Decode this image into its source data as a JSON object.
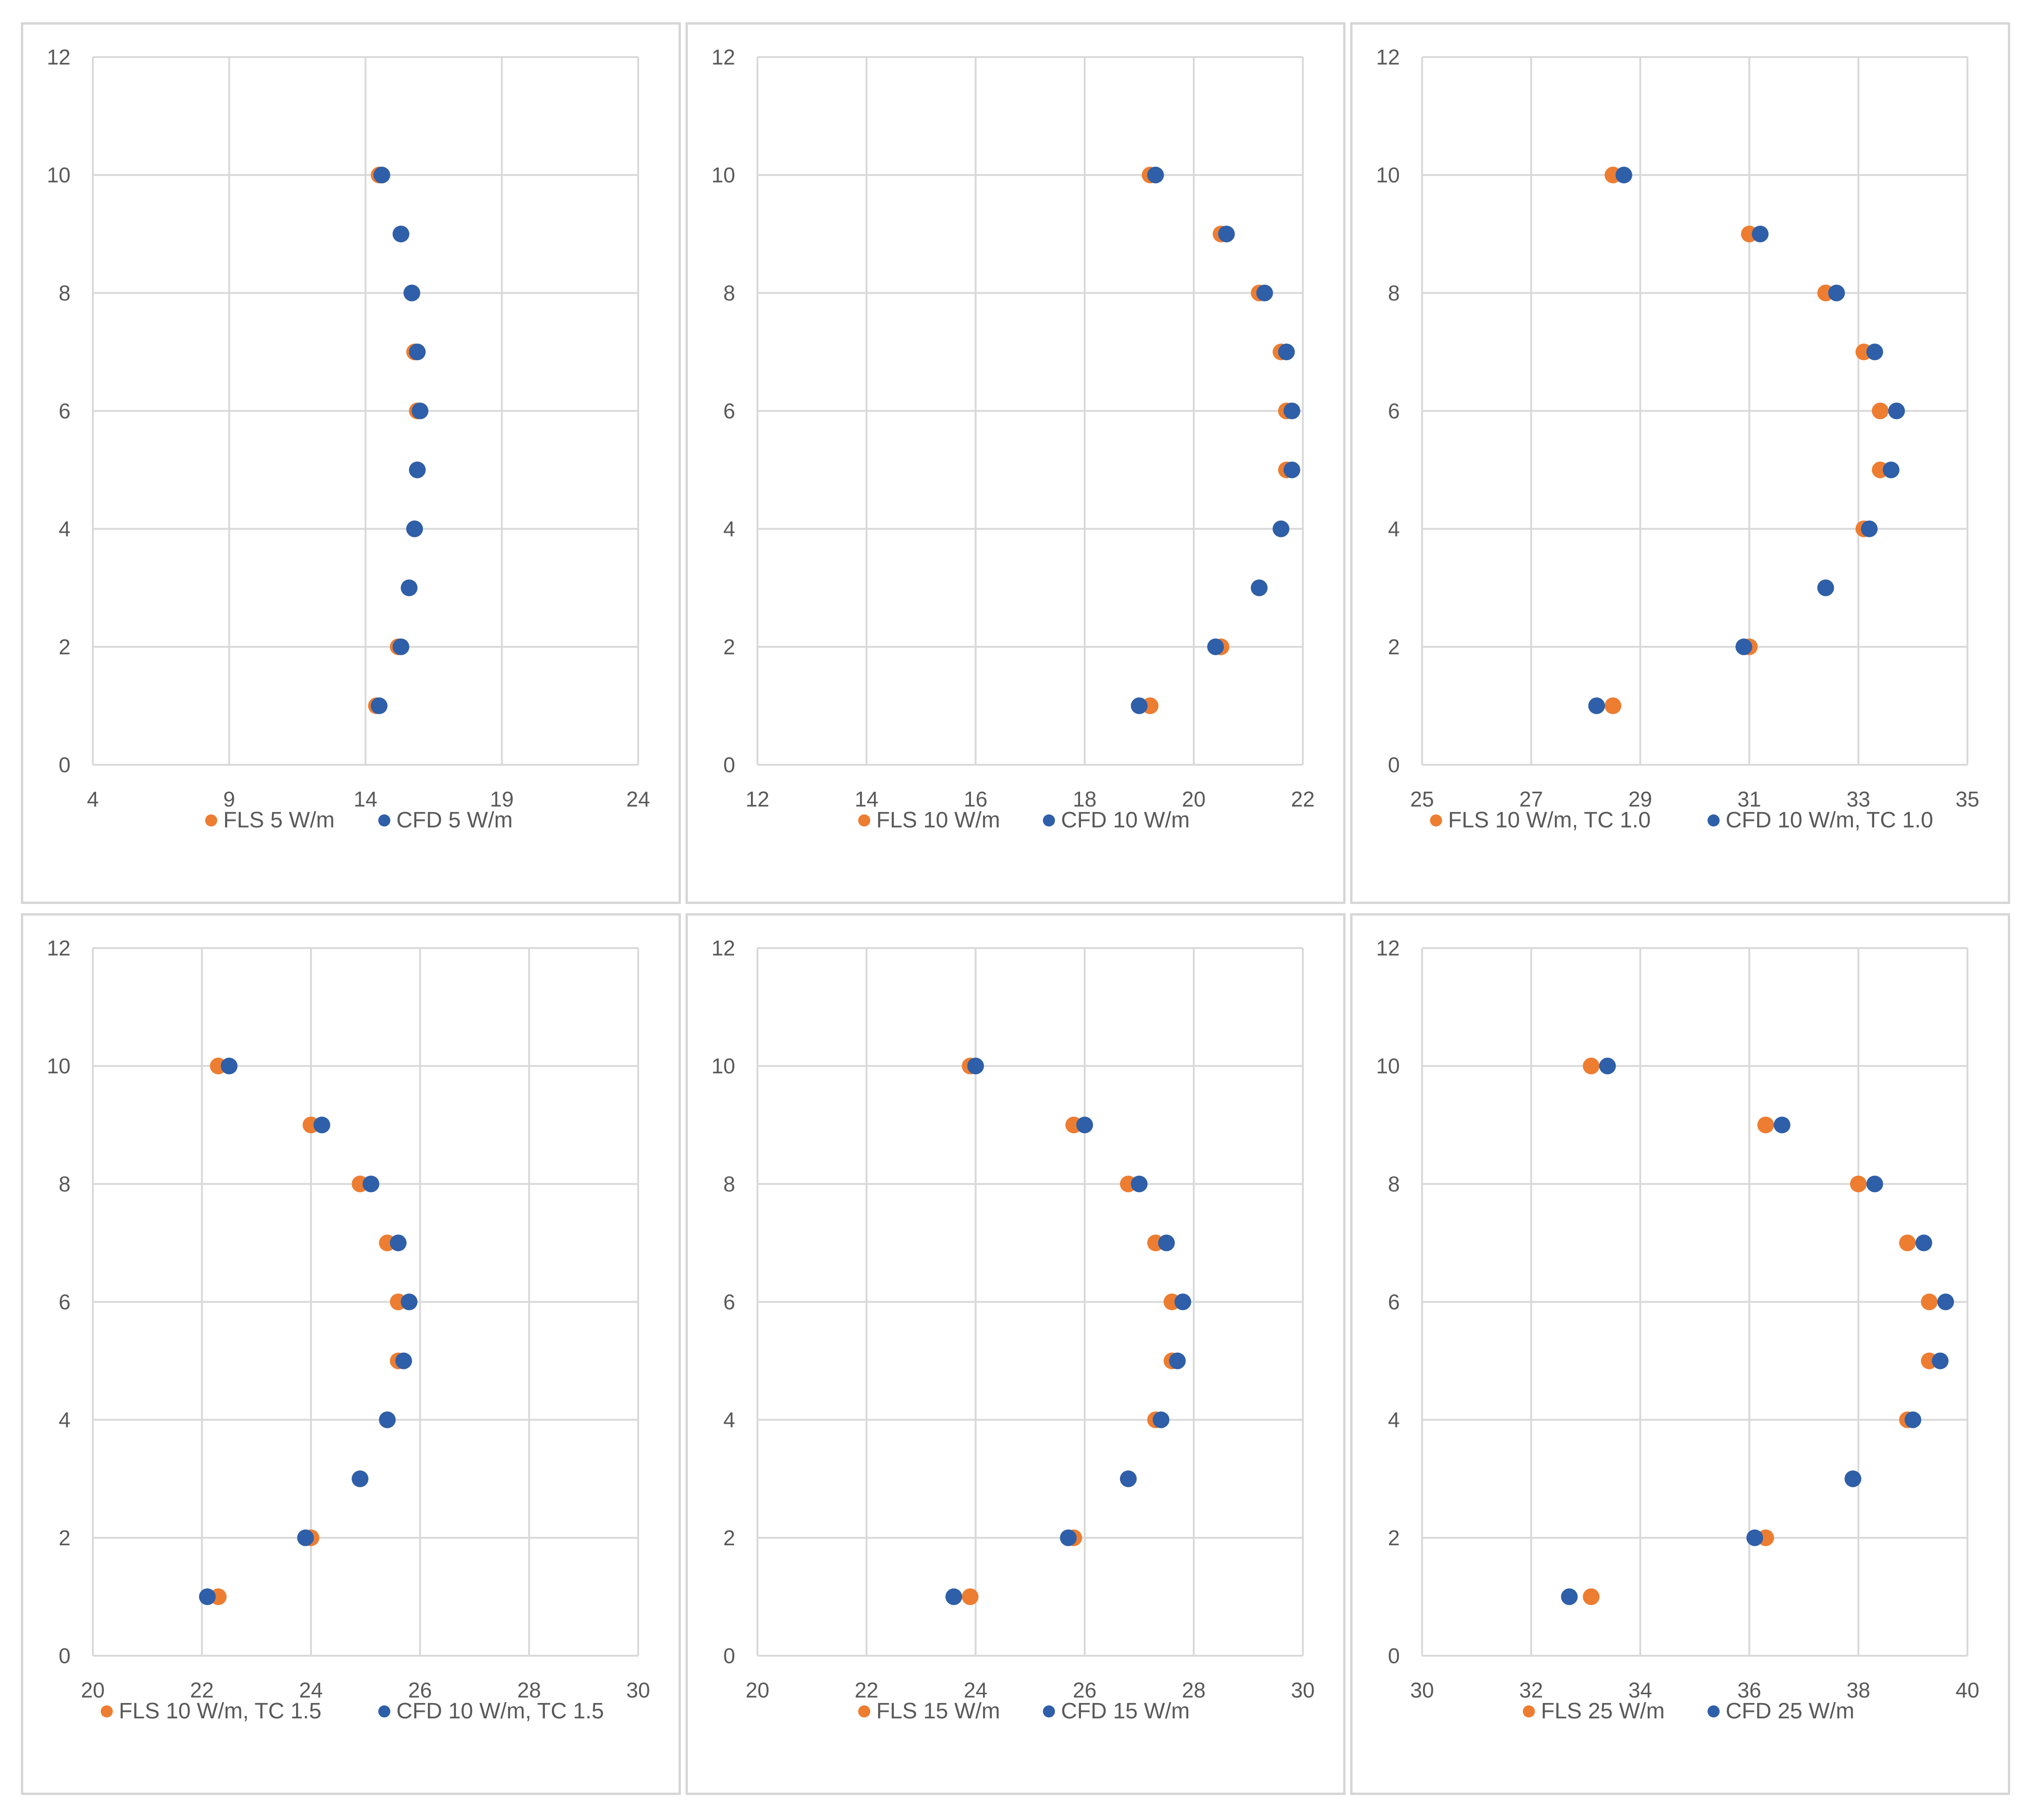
{
  "colors": {
    "fls": "#ED7D31",
    "cfd": "#2E5FA8",
    "grid": "#d9d9d9",
    "text": "#595959"
  },
  "chart_data": [
    {
      "type": "scatter",
      "xlim": [
        4,
        24
      ],
      "xticks": [
        4,
        9,
        14,
        19,
        24
      ],
      "ylim": [
        0,
        12
      ],
      "yticks": [
        0,
        2,
        4,
        6,
        8,
        10,
        12
      ],
      "legend_position": "bottom",
      "series": [
        {
          "name": "FLS 5 W/m",
          "color": "#ED7D31",
          "points": [
            [
              14.4,
              1
            ],
            [
              15.2,
              2
            ],
            [
              15.6,
              3
            ],
            [
              15.8,
              4
            ],
            [
              15.9,
              5
            ],
            [
              15.9,
              6
            ],
            [
              15.8,
              7
            ],
            [
              15.7,
              8
            ],
            [
              15.3,
              9
            ],
            [
              14.5,
              10
            ]
          ]
        },
        {
          "name": "CFD 5 W/m",
          "color": "#2E5FA8",
          "points": [
            [
              14.5,
              1
            ],
            [
              15.3,
              2
            ],
            [
              15.6,
              3
            ],
            [
              15.8,
              4
            ],
            [
              15.9,
              5
            ],
            [
              16.0,
              6
            ],
            [
              15.9,
              7
            ],
            [
              15.7,
              8
            ],
            [
              15.3,
              9
            ],
            [
              14.6,
              10
            ]
          ]
        }
      ]
    },
    {
      "type": "scatter",
      "xlim": [
        12,
        22
      ],
      "xticks": [
        12,
        14,
        16,
        18,
        20,
        22
      ],
      "ylim": [
        0,
        12
      ],
      "yticks": [
        0,
        2,
        4,
        6,
        8,
        10,
        12
      ],
      "legend_position": "bottom",
      "series": [
        {
          "name": "FLS 10 W/m",
          "color": "#ED7D31",
          "points": [
            [
              19.2,
              1
            ],
            [
              20.5,
              2
            ],
            [
              21.2,
              3
            ],
            [
              21.6,
              4
            ],
            [
              21.7,
              5
            ],
            [
              21.7,
              6
            ],
            [
              21.6,
              7
            ],
            [
              21.2,
              8
            ],
            [
              20.5,
              9
            ],
            [
              19.2,
              10
            ]
          ]
        },
        {
          "name": "CFD 10 W/m",
          "color": "#2E5FA8",
          "points": [
            [
              19.0,
              1
            ],
            [
              20.4,
              2
            ],
            [
              21.2,
              3
            ],
            [
              21.6,
              4
            ],
            [
              21.8,
              5
            ],
            [
              21.8,
              6
            ],
            [
              21.7,
              7
            ],
            [
              21.3,
              8
            ],
            [
              20.6,
              9
            ],
            [
              19.3,
              10
            ]
          ]
        }
      ]
    },
    {
      "type": "scatter",
      "xlim": [
        25,
        35
      ],
      "xticks": [
        25,
        27,
        29,
        31,
        33,
        35
      ],
      "ylim": [
        0,
        12
      ],
      "yticks": [
        0,
        2,
        4,
        6,
        8,
        10,
        12
      ],
      "legend_position": "bottom",
      "series": [
        {
          "name": "FLS 10 W/m, TC 1.0",
          "color": "#ED7D31",
          "points": [
            [
              28.5,
              1
            ],
            [
              31.0,
              2
            ],
            [
              32.4,
              3
            ],
            [
              33.1,
              4
            ],
            [
              33.4,
              5
            ],
            [
              33.4,
              6
            ],
            [
              33.1,
              7
            ],
            [
              32.4,
              8
            ],
            [
              31.0,
              9
            ],
            [
              28.5,
              10
            ]
          ]
        },
        {
          "name": "CFD 10 W/m, TC 1.0",
          "color": "#2E5FA8",
          "points": [
            [
              28.2,
              1
            ],
            [
              30.9,
              2
            ],
            [
              32.4,
              3
            ],
            [
              33.2,
              4
            ],
            [
              33.6,
              5
            ],
            [
              33.7,
              6
            ],
            [
              33.3,
              7
            ],
            [
              32.6,
              8
            ],
            [
              31.2,
              9
            ],
            [
              28.7,
              10
            ]
          ]
        }
      ]
    },
    {
      "type": "scatter",
      "xlim": [
        20,
        30
      ],
      "xticks": [
        20,
        22,
        24,
        26,
        28,
        30
      ],
      "ylim": [
        0,
        12
      ],
      "yticks": [
        0,
        2,
        4,
        6,
        8,
        10,
        12
      ],
      "legend_position": "bottom",
      "series": [
        {
          "name": "FLS 10 W/m, TC 1.5",
          "color": "#ED7D31",
          "points": [
            [
              22.3,
              1
            ],
            [
              24.0,
              2
            ],
            [
              24.9,
              3
            ],
            [
              25.4,
              4
            ],
            [
              25.6,
              5
            ],
            [
              25.6,
              6
            ],
            [
              25.4,
              7
            ],
            [
              24.9,
              8
            ],
            [
              24.0,
              9
            ],
            [
              22.3,
              10
            ]
          ]
        },
        {
          "name": "CFD 10 W/m, TC 1.5",
          "color": "#2E5FA8",
          "points": [
            [
              22.1,
              1
            ],
            [
              23.9,
              2
            ],
            [
              24.9,
              3
            ],
            [
              25.4,
              4
            ],
            [
              25.7,
              5
            ],
            [
              25.8,
              6
            ],
            [
              25.6,
              7
            ],
            [
              25.1,
              8
            ],
            [
              24.2,
              9
            ],
            [
              22.5,
              10
            ]
          ]
        }
      ]
    },
    {
      "type": "scatter",
      "xlim": [
        20,
        30
      ],
      "xticks": [
        20,
        22,
        24,
        26,
        28,
        30
      ],
      "ylim": [
        0,
        12
      ],
      "yticks": [
        0,
        2,
        4,
        6,
        8,
        10,
        12
      ],
      "legend_position": "bottom",
      "series": [
        {
          "name": "FLS 15 W/m",
          "color": "#ED7D31",
          "points": [
            [
              23.9,
              1
            ],
            [
              25.8,
              2
            ],
            [
              26.8,
              3
            ],
            [
              27.3,
              4
            ],
            [
              27.6,
              5
            ],
            [
              27.6,
              6
            ],
            [
              27.3,
              7
            ],
            [
              26.8,
              8
            ],
            [
              25.8,
              9
            ],
            [
              23.9,
              10
            ]
          ]
        },
        {
          "name": "CFD 15 W/m",
          "color": "#2E5FA8",
          "points": [
            [
              23.6,
              1
            ],
            [
              25.7,
              2
            ],
            [
              26.8,
              3
            ],
            [
              27.4,
              4
            ],
            [
              27.7,
              5
            ],
            [
              27.8,
              6
            ],
            [
              27.5,
              7
            ],
            [
              27.0,
              8
            ],
            [
              26.0,
              9
            ],
            [
              24.0,
              10
            ]
          ]
        }
      ]
    },
    {
      "type": "scatter",
      "xlim": [
        30,
        40
      ],
      "xticks": [
        30,
        32,
        34,
        36,
        38,
        40
      ],
      "ylim": [
        0,
        12
      ],
      "yticks": [
        0,
        2,
        4,
        6,
        8,
        10,
        12
      ],
      "legend_position": "bottom",
      "series": [
        {
          "name": "FLS 25 W/m",
          "color": "#ED7D31",
          "points": [
            [
              33.1,
              1
            ],
            [
              36.3,
              2
            ],
            [
              37.9,
              3
            ],
            [
              38.9,
              4
            ],
            [
              39.3,
              5
            ],
            [
              39.3,
              6
            ],
            [
              38.9,
              7
            ],
            [
              38.0,
              8
            ],
            [
              36.3,
              9
            ],
            [
              33.1,
              10
            ]
          ]
        },
        {
          "name": "CFD 25 W/m",
          "color": "#2E5FA8",
          "points": [
            [
              32.7,
              1
            ],
            [
              36.1,
              2
            ],
            [
              37.9,
              3
            ],
            [
              39.0,
              4
            ],
            [
              39.5,
              5
            ],
            [
              39.6,
              6
            ],
            [
              39.2,
              7
            ],
            [
              38.3,
              8
            ],
            [
              36.6,
              9
            ],
            [
              33.4,
              10
            ]
          ]
        }
      ]
    }
  ]
}
